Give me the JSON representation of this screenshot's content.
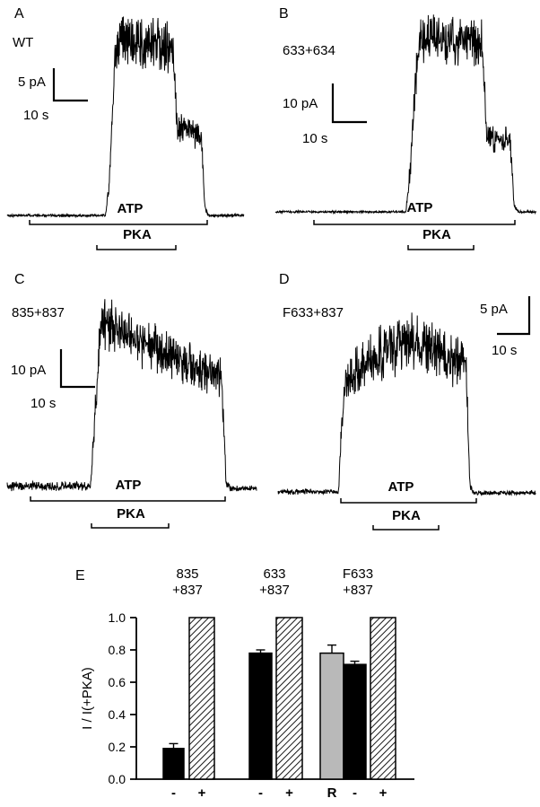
{
  "panels": [
    {
      "label": "A",
      "condition": "WT",
      "scale_v": "5 pA",
      "scale_h": "10 s",
      "atp_label": "ATP",
      "pka_label": "PKA"
    },
    {
      "label": "B",
      "condition": "633+634",
      "scale_v": "10 pA",
      "scale_h": "10 s",
      "atp_label": "ATP",
      "pka_label": "PKA"
    },
    {
      "label": "C",
      "condition": "835+837",
      "scale_v": "10 pA",
      "scale_h": "10 s",
      "atp_label": "ATP",
      "pka_label": "PKA"
    },
    {
      "label": "D",
      "condition": "F633+837",
      "scale_v": "5 pA",
      "scale_h": "10 s",
      "atp_label": "ATP",
      "pka_label": "PKA"
    }
  ],
  "panelE": {
    "label": "E",
    "ylabel": "I / I(+PKA)",
    "yticks": [
      "1.0",
      "0.8",
      "0.6",
      "0.4",
      "0.2",
      "0.0"
    ]
  },
  "chart_data": [
    {
      "type": "line",
      "panel": "A",
      "title": "WT",
      "scale_bar": {
        "vertical": "5 pA",
        "horizontal": "10 s"
      },
      "applications": [
        {
          "label": "ATP",
          "t_frac": [
            0.095,
            0.845
          ]
        },
        {
          "label": "PKA",
          "t_frac": [
            0.379,
            0.712
          ]
        }
      ],
      "y_normalized_to_peak": true,
      "envelope": [
        [
          0,
          0,
          0.006
        ],
        [
          0.415,
          0,
          0.006
        ],
        [
          0.43,
          0.15,
          0.04
        ],
        [
          0.455,
          0.82,
          0.1
        ],
        [
          0.48,
          0.92,
          0.12
        ],
        [
          0.7,
          0.88,
          0.12
        ],
        [
          0.72,
          0.46,
          0.07
        ],
        [
          0.82,
          0.42,
          0.06
        ],
        [
          0.835,
          0.04,
          0.02
        ],
        [
          0.85,
          0,
          0.007
        ],
        [
          1,
          0,
          0.007
        ]
      ]
    },
    {
      "type": "line",
      "panel": "B",
      "title": "633+634",
      "scale_bar": {
        "vertical": "10 pA",
        "horizontal": "10 s"
      },
      "applications": [
        {
          "label": "ATP",
          "t_frac": [
            0.148,
            0.918
          ]
        },
        {
          "label": "PKA",
          "t_frac": [
            0.509,
            0.759
          ]
        }
      ],
      "y_normalized_to_peak": true,
      "envelope": [
        [
          0,
          0,
          0.005
        ],
        [
          0.5,
          0,
          0.005
        ],
        [
          0.515,
          0.2,
          0.05
        ],
        [
          0.545,
          0.85,
          0.1
        ],
        [
          0.57,
          0.92,
          0.11
        ],
        [
          0.79,
          0.9,
          0.11
        ],
        [
          0.81,
          0.4,
          0.06
        ],
        [
          0.9,
          0.37,
          0.06
        ],
        [
          0.915,
          0.03,
          0.02
        ],
        [
          0.93,
          0,
          0.006
        ],
        [
          1,
          0,
          0.006
        ]
      ]
    },
    {
      "type": "line",
      "panel": "C",
      "title": "835+837",
      "scale_bar": {
        "vertical": "10 pA",
        "horizontal": "10 s"
      },
      "applications": [
        {
          "label": "ATP",
          "t_frac": [
            0.094,
            0.874
          ]
        },
        {
          "label": "PKA",
          "t_frac": [
            0.338,
            0.647
          ]
        }
      ],
      "y_normalized_to_peak": true,
      "envelope": [
        [
          0,
          0.02,
          0.02
        ],
        [
          0.335,
          0.02,
          0.02
        ],
        [
          0.35,
          0.35,
          0.07
        ],
        [
          0.375,
          0.9,
          0.11
        ],
        [
          0.42,
          0.88,
          0.12
        ],
        [
          0.55,
          0.78,
          0.11
        ],
        [
          0.86,
          0.6,
          0.08
        ],
        [
          0.878,
          0.05,
          0.03
        ],
        [
          0.895,
          0.01,
          0.012
        ],
        [
          1,
          0.01,
          0.012
        ]
      ]
    },
    {
      "type": "line",
      "panel": "D",
      "title": "F633+837",
      "scale_bar": {
        "vertical": "5 pA",
        "horizontal": "10 s"
      },
      "applications": [
        {
          "label": "ATP",
          "t_frac": [
            0.244,
            0.77
          ]
        },
        {
          "label": "PKA",
          "t_frac": [
            0.369,
            0.624
          ]
        }
      ],
      "y_normalized_to_peak": true,
      "envelope": [
        [
          0,
          0.01,
          0.012
        ],
        [
          0.235,
          0.01,
          0.012
        ],
        [
          0.25,
          0.45,
          0.08
        ],
        [
          0.27,
          0.62,
          0.1
        ],
        [
          0.42,
          0.78,
          0.13
        ],
        [
          0.52,
          0.83,
          0.13
        ],
        [
          0.62,
          0.75,
          0.12
        ],
        [
          0.73,
          0.7,
          0.11
        ],
        [
          0.745,
          0.04,
          0.02
        ],
        [
          0.76,
          0.005,
          0.01
        ],
        [
          1,
          0.005,
          0.01
        ]
      ]
    },
    {
      "type": "bar",
      "panel": "E",
      "ylabel": "I / I(+PKA)",
      "ylim": [
        0,
        1.0
      ],
      "grid": false,
      "groups": [
        {
          "label_line1": "835",
          "label_line2": "+837",
          "bars": [
            {
              "x": "-",
              "value": 0.19,
              "error": 0.03,
              "style": "black"
            },
            {
              "x": "+",
              "value": 1.0,
              "error": 0,
              "style": "hatched"
            }
          ]
        },
        {
          "label_line1": "633",
          "label_line2": "+837",
          "bars": [
            {
              "x": "-",
              "value": 0.78,
              "error": 0.02,
              "style": "black"
            },
            {
              "x": "+",
              "value": 1.0,
              "error": 0,
              "style": "hatched"
            }
          ]
        },
        {
          "label_line1": "F633",
          "label_line2": "+837",
          "bars": [
            {
              "x": "R",
              "value": 0.78,
              "error": 0.05,
              "style": "gray"
            },
            {
              "x": "-",
              "value": 0.71,
              "error": 0.02,
              "style": "black"
            },
            {
              "x": "+",
              "value": 1.0,
              "error": 0,
              "style": "hatched"
            }
          ]
        }
      ]
    }
  ]
}
